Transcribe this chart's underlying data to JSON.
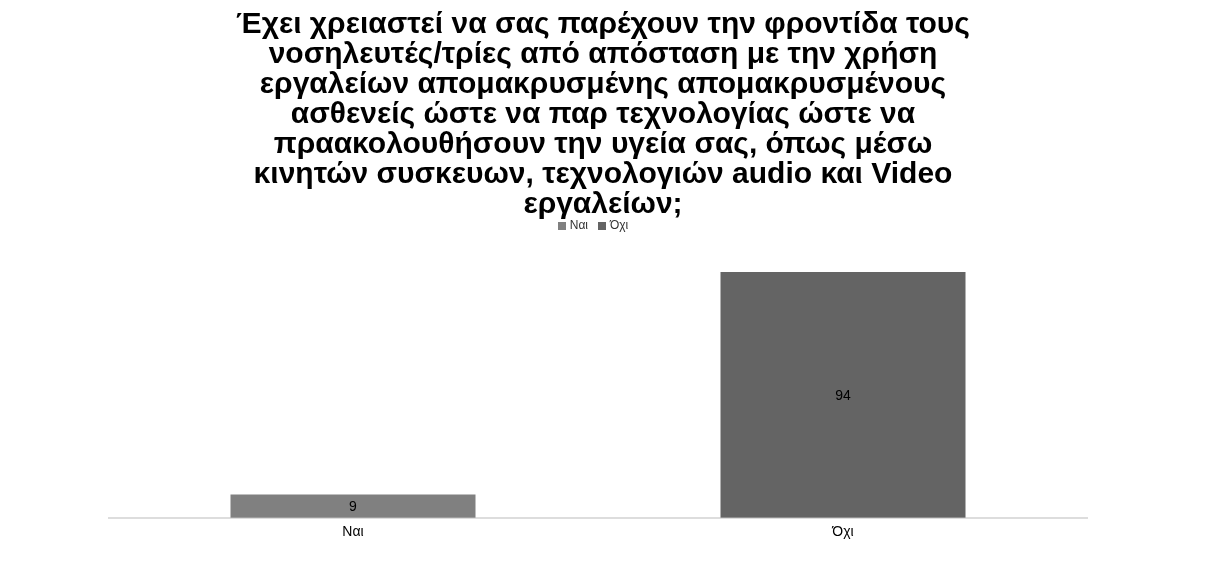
{
  "chart_data": {
    "type": "bar",
    "title": "Έχει χρειαστεί να σας παρέχουν την φροντίδα τους\nνοσηλευτές/τρίες από απόσταση με την χρήση\nεργαλείων απομακρυσμένης απομακρυσμένους\nασθενείς ώστε να παρ τεχνολογίας ώστε να\nπραακολουθήσουν την υγεία σας, όπως μέσω\nκινητών συσκευων, τεχνολογιών audio και Video\nεργαλείων;",
    "categories": [
      "Ναι",
      "Όχι"
    ],
    "series": [
      {
        "name": "Ναι",
        "color": "#808080",
        "values": [
          9,
          null
        ]
      },
      {
        "name": "Όχι",
        "color": "#646464",
        "values": [
          null,
          94
        ]
      }
    ],
    "data_labels": true,
    "legend": "top"
  }
}
